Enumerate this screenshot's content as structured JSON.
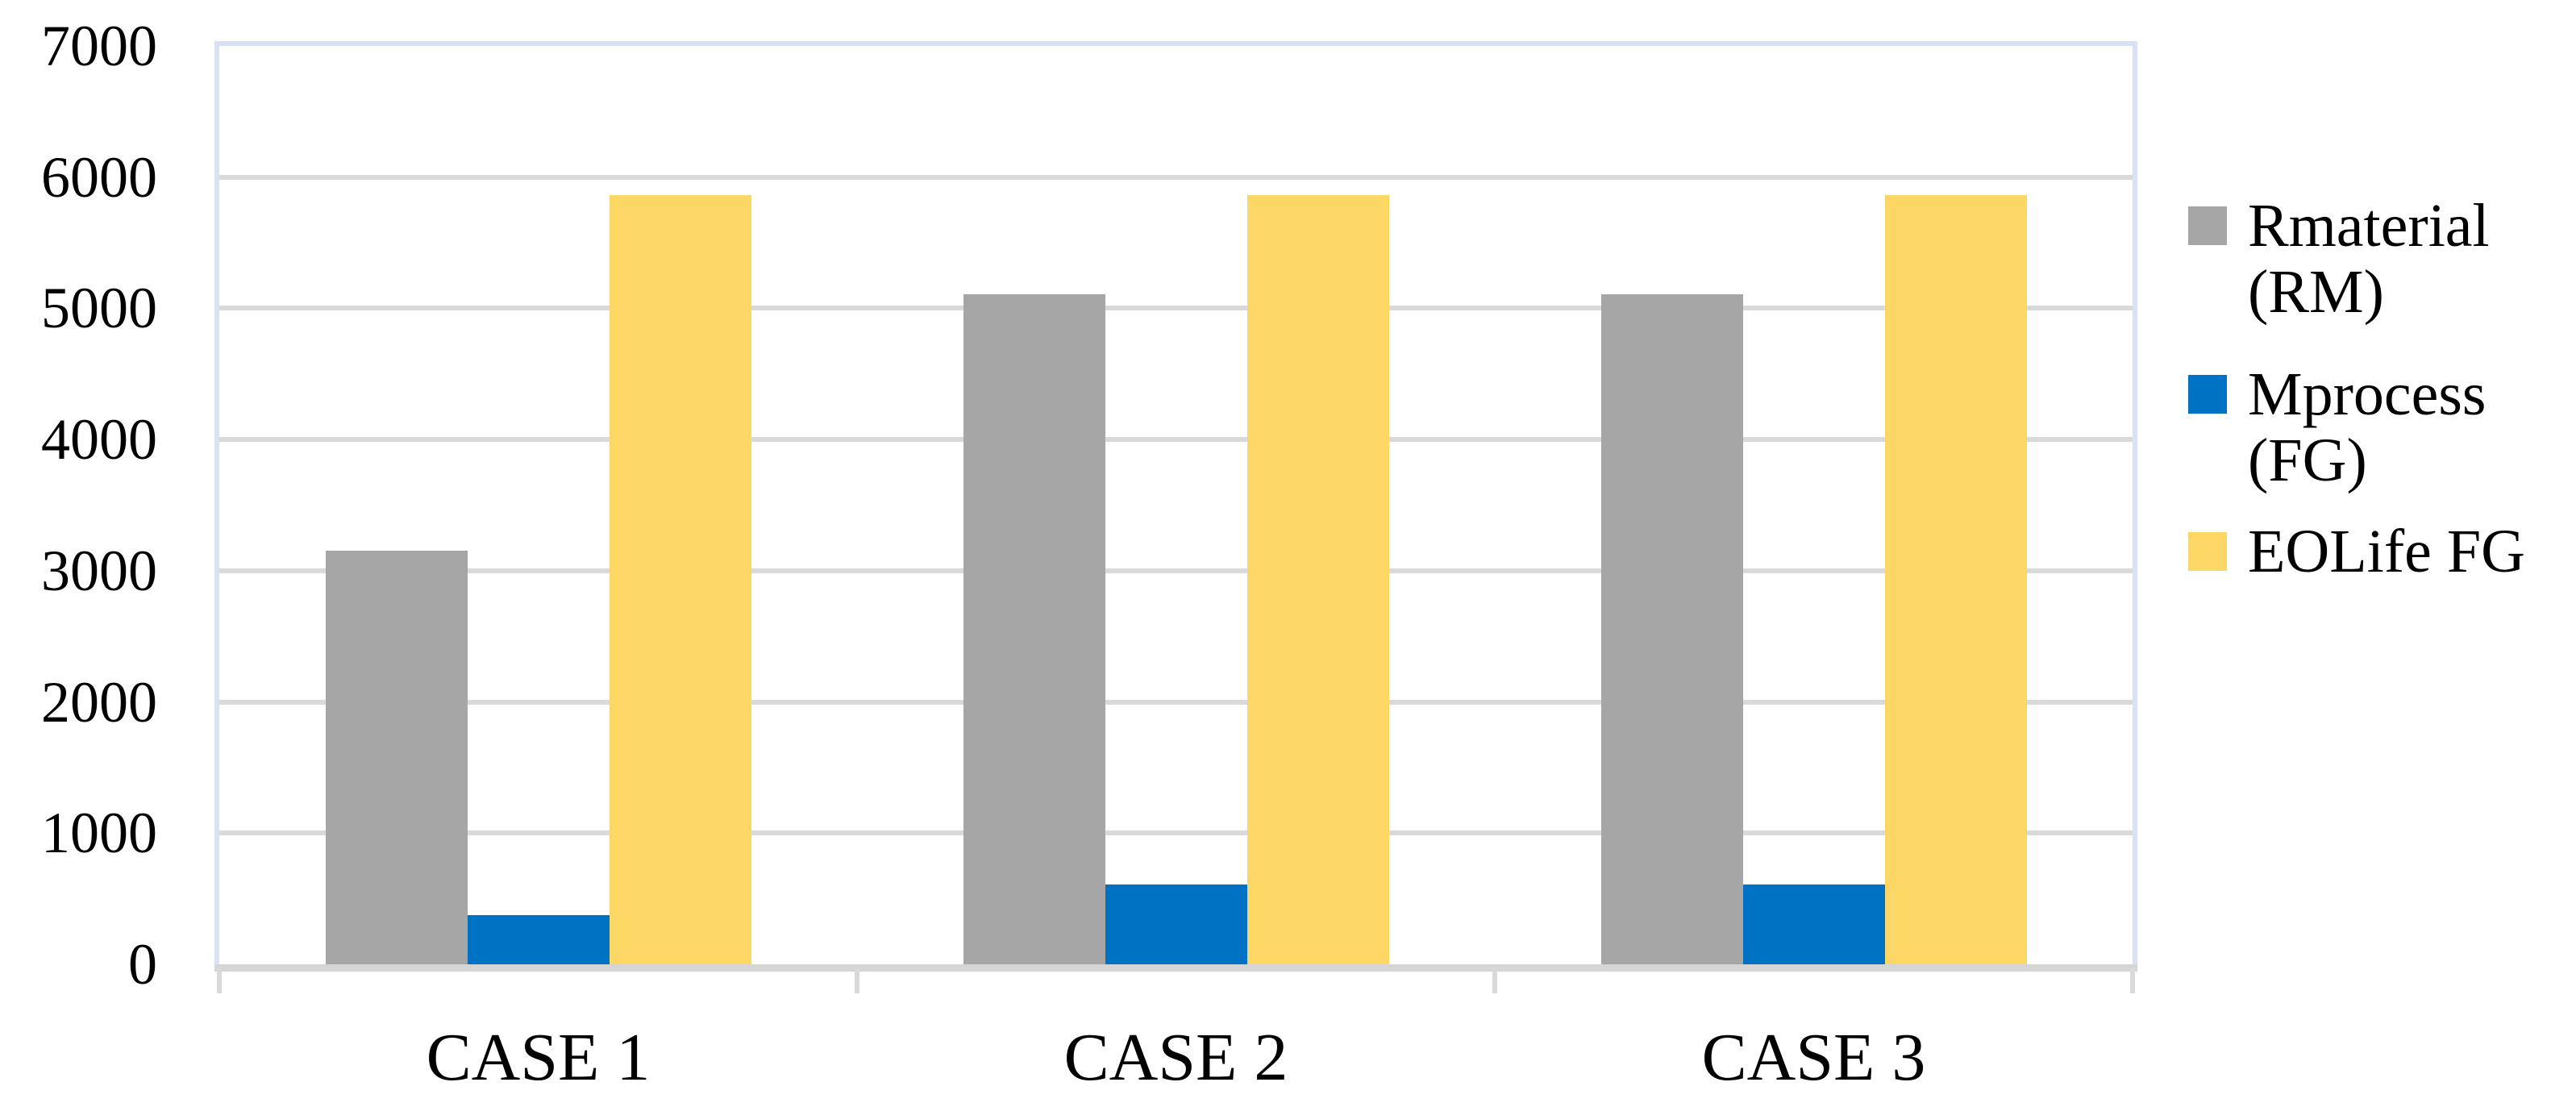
{
  "chart_data": {
    "type": "bar",
    "categories": [
      "CASE 1",
      "CASE 2",
      "CASE 3"
    ],
    "series": [
      {
        "name": "Rmaterial (RM)",
        "legend_lines": [
          "Rmaterial",
          "(RM)"
        ],
        "color": "#A6A6A6",
        "values": [
          3150,
          5110,
          5110
        ]
      },
      {
        "name": "Mprocess (FG)",
        "legend_lines": [
          "Mprocess",
          "(FG)"
        ],
        "color": "#0072C3",
        "values": [
          375,
          610,
          610
        ]
      },
      {
        "name": "EOLife FG",
        "legend_lines": [
          "EOLife FG"
        ],
        "color": "#FCD765",
        "values": [
          5860,
          5860,
          5860
        ]
      }
    ],
    "y_axis": {
      "min": 0,
      "max": 7000,
      "step": 1000,
      "tick_labels": [
        "7000",
        "6000",
        "5000",
        "4000",
        "3000",
        "2000",
        "1000",
        "0"
      ]
    },
    "x_axis": {
      "labels": [
        "CASE 1",
        "CASE 2",
        "CASE 3"
      ]
    },
    "grid": true,
    "legend_position": "right",
    "colors": {
      "gridline": "#D9D9D9",
      "axis_line": "#D5D5D5",
      "plot_border": "#D9E2F3",
      "text": "#000000",
      "background": "#FFFFFF"
    }
  }
}
